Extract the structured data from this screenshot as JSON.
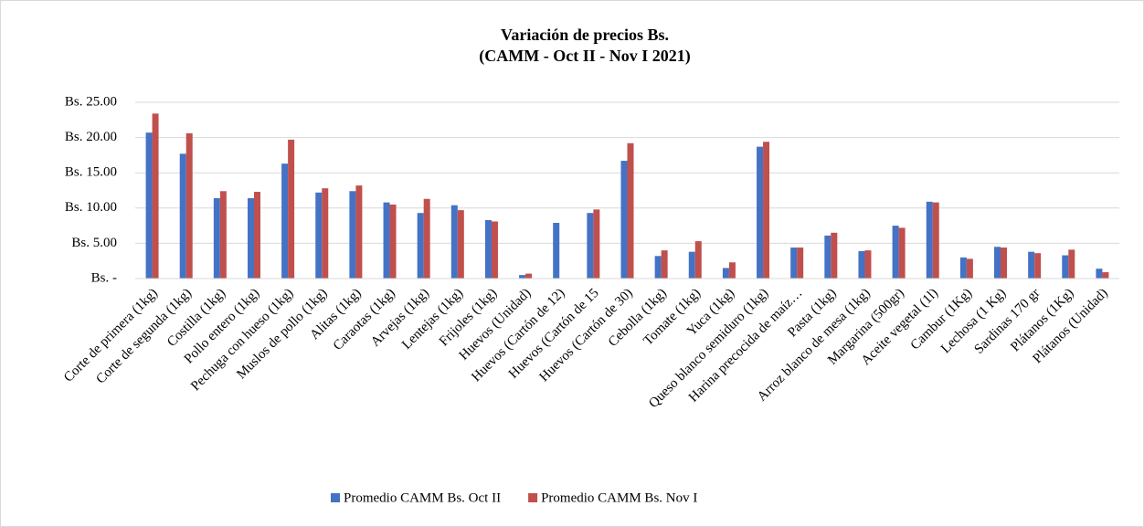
{
  "chart_data": {
    "type": "bar",
    "title": "Variación de precios Bs.",
    "subtitle": "(CAMM - Oct II - Nov I 2021)",
    "categories": [
      "Corte de primera (1kg)",
      "Corte de segunda (1kg)",
      "Costilla (1kg)",
      "Pollo entero (1kg)",
      "Pechuga con hueso (1kg)",
      "Muslos de pollo (1kg)",
      "Alitas (1kg)",
      "Caraotas (1kg)",
      "Arvejas (1kg)",
      "Lentejas (1kg)",
      "Frijoles (1kg)",
      "Huevos (Unidad)",
      "Huevos (Cartón de 12)",
      "Huevos (Cartón de 15",
      "Huevos (Cartón de 30)",
      "Cebolla (1kg)",
      "Tomate (1kg)",
      "Yuca (1kg)",
      "Queso blanco semiduro (1kg)",
      "Harina precocida de maíz…",
      "Pasta (1kg)",
      "Arroz blanco de mesa (1kg)",
      "Margarina (500gr)",
      "Aceite vegetal (1l)",
      "Cambur (1Kg)",
      "Lechosa (1 Kg)",
      "Sardinas 170 gr",
      "Plátanos (1Kg)",
      "Plátanos (Unidad)"
    ],
    "series": [
      {
        "name": "Promedio CAMM Bs. Oct II",
        "color": "#4472c4",
        "values": [
          20.7,
          17.7,
          11.4,
          11.4,
          16.3,
          12.2,
          12.4,
          10.8,
          9.3,
          10.4,
          8.3,
          0.5,
          7.9,
          9.3,
          16.7,
          3.2,
          3.8,
          1.5,
          18.7,
          4.4,
          6.1,
          3.9,
          7.5,
          10.9,
          3.0,
          4.5,
          3.8,
          3.3,
          1.4
        ]
      },
      {
        "name": "Promedio CAMM Bs. Nov I",
        "color": "#c0504d",
        "values": [
          23.4,
          20.6,
          12.4,
          12.3,
          19.7,
          12.8,
          13.2,
          10.5,
          11.3,
          9.7,
          8.1,
          0.7,
          null,
          9.8,
          19.2,
          4.0,
          5.3,
          2.3,
          19.4,
          4.4,
          6.5,
          4.0,
          7.2,
          10.8,
          2.8,
          4.4,
          3.6,
          4.1,
          0.9
        ]
      }
    ],
    "ylim": [
      0,
      25
    ],
    "yticks": [
      {
        "value": 0,
        "label": "Bs. -"
      },
      {
        "value": 5,
        "label": "Bs. 5.00"
      },
      {
        "value": 10,
        "label": "Bs. 10.00"
      },
      {
        "value": 15,
        "label": "Bs. 15.00"
      },
      {
        "value": 20,
        "label": "Bs. 20.00"
      },
      {
        "value": 25,
        "label": "Bs. 25.00"
      }
    ],
    "grid": true,
    "legend": "bottom"
  }
}
